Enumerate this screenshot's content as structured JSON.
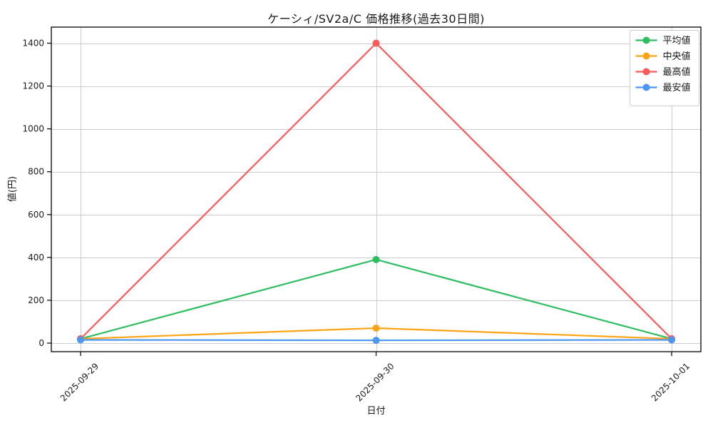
{
  "chart_data": {
    "type": "line",
    "title": "ケーシィ/SV2a/C 価格推移(過去30日間)",
    "xlabel": "日付",
    "ylabel": "値(円)",
    "categories": [
      "2025-09-29",
      "2025-09-30",
      "2025-10-01"
    ],
    "series": [
      {
        "name": "平均値",
        "color": "#2dbe60",
        "values": [
          20,
          390,
          20
        ]
      },
      {
        "name": "中央値",
        "color": "#ffa415",
        "values": [
          20,
          70,
          20
        ]
      },
      {
        "name": "最高値",
        "color": "#f95b5b",
        "values": [
          20,
          1400,
          20
        ]
      },
      {
        "name": "最安値",
        "color": "#4b97f2",
        "values": [
          15,
          13,
          15
        ]
      }
    ],
    "yticks": [
      0,
      200,
      400,
      600,
      800,
      1000,
      1200,
      1400
    ],
    "ylim": [
      -40,
      1475
    ],
    "grid": true,
    "grid_color": "#cccccc",
    "axis_color": "#000000",
    "tick_label_color": "#1a1a1a",
    "legend_position": "upper right",
    "x_tick_rotation": 45
  }
}
